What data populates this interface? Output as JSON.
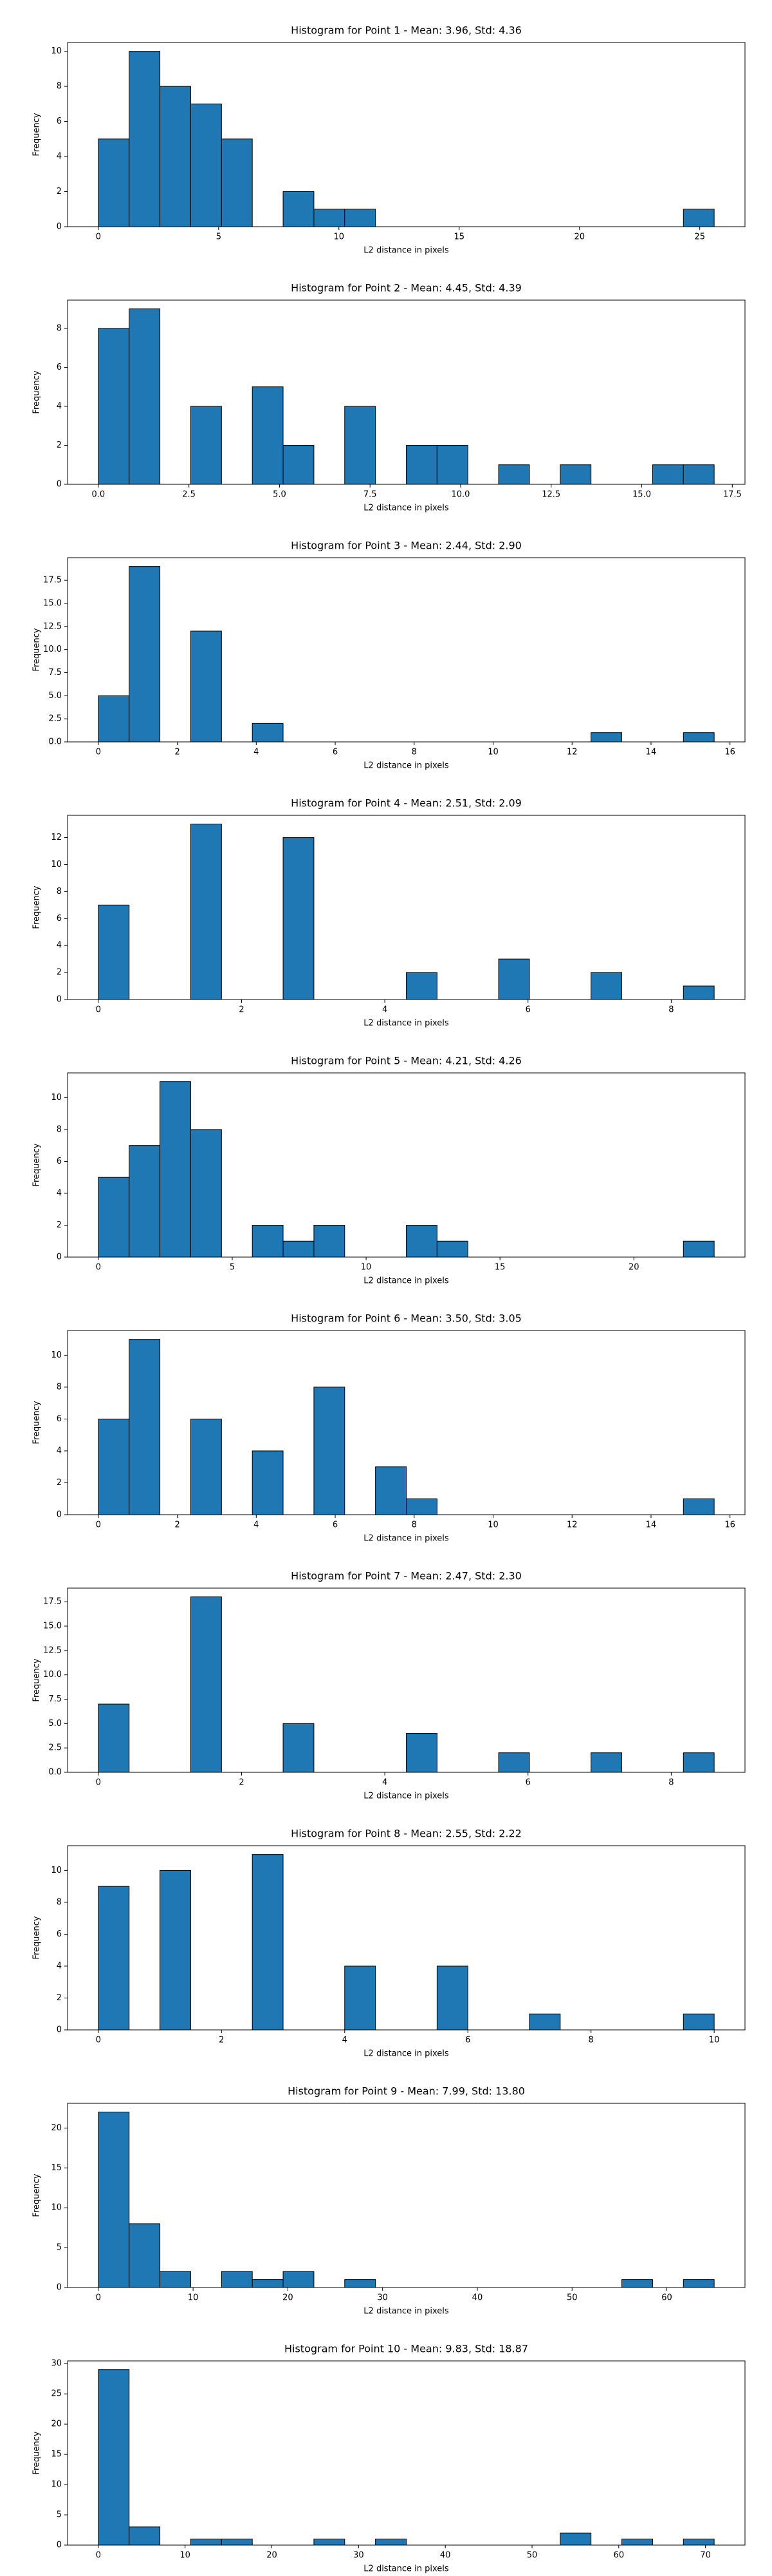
{
  "chart_data": [
    {
      "type": "histogram",
      "title": "Histogram for Point 1 - Mean: 3.96, Std: 4.36",
      "xlabel": "L2 distance in pixels",
      "ylabel": "Frequency",
      "color": "#1f77b4",
      "bins": [
        0,
        1.28,
        2.56,
        3.84,
        5.12,
        6.4,
        7.68,
        8.96,
        10.24,
        11.52,
        12.8,
        14.08,
        15.36,
        16.64,
        17.92,
        19.2,
        20.48,
        21.76,
        23.04,
        24.32,
        25.6
      ],
      "values": [
        5,
        10,
        8,
        7,
        5,
        0,
        2,
        1,
        1,
        0,
        0,
        0,
        0,
        0,
        0,
        0,
        0,
        0,
        0,
        1
      ],
      "xlim": [
        -1.28,
        26.88
      ],
      "ylim": [
        0,
        10.5
      ],
      "xticks": [
        0,
        5,
        10,
        15,
        20,
        25
      ],
      "yticks": [
        0,
        2,
        4,
        6,
        8,
        10
      ]
    },
    {
      "type": "histogram",
      "title": "Histogram for Point 2 - Mean: 4.45, Std: 4.39",
      "xlabel": "L2 distance in pixels",
      "ylabel": "Frequency",
      "color": "#1f77b4",
      "bins": [
        0,
        0.85,
        1.7,
        2.55,
        3.4,
        4.25,
        5.1,
        5.95,
        6.8,
        7.65,
        8.5,
        9.35,
        10.2,
        11.05,
        11.9,
        12.75,
        13.6,
        14.45,
        15.3,
        16.15,
        17
      ],
      "values": [
        8,
        9,
        0,
        4,
        0,
        5,
        2,
        0,
        4,
        0,
        2,
        2,
        0,
        1,
        0,
        1,
        0,
        0,
        1,
        1
      ],
      "xlim": [
        -0.85,
        17.85
      ],
      "ylim": [
        0,
        9.45
      ],
      "xticks": [
        {
          "value": 0,
          "label": "0.0"
        },
        2.5,
        {
          "value": 5,
          "label": "5.0"
        },
        7.5,
        {
          "value": 10,
          "label": "10.0"
        },
        12.5,
        {
          "value": 15,
          "label": "15.0"
        },
        17.5
      ],
      "yticks": [
        0,
        2,
        4,
        6,
        8
      ]
    },
    {
      "type": "histogram",
      "title": "Histogram for Point 3 - Mean: 2.44, Std: 2.90",
      "xlabel": "L2 distance in pixels",
      "ylabel": "Frequency",
      "color": "#1f77b4",
      "bins": [
        0,
        0.78,
        1.56,
        2.34,
        3.12,
        3.9,
        4.68,
        5.46,
        6.24,
        7.02,
        7.8,
        8.58,
        9.36,
        10.14,
        10.92,
        11.7,
        12.48,
        13.26,
        14.04,
        14.82,
        15.6
      ],
      "values": [
        5,
        19,
        0,
        12,
        0,
        2,
        0,
        0,
        0,
        0,
        0,
        0,
        0,
        0,
        0,
        0,
        1,
        0,
        0,
        1
      ],
      "xlim": [
        -0.78,
        16.38
      ],
      "ylim": [
        0,
        19.95
      ],
      "xticks": [
        0,
        2,
        4,
        6,
        8,
        10,
        12,
        14,
        16
      ],
      "yticks": [
        {
          "value": 0,
          "label": "0.0"
        },
        2.5,
        {
          "value": 5,
          "label": "5.0"
        },
        7.5,
        {
          "value": 10,
          "label": "10.0"
        },
        12.5,
        {
          "value": 15,
          "label": "15.0"
        },
        17.5
      ]
    },
    {
      "type": "histogram",
      "title": "Histogram for Point 4 - Mean: 2.51, Std: 2.09",
      "xlabel": "L2 distance in pixels",
      "ylabel": "Frequency",
      "color": "#1f77b4",
      "bins": [
        0,
        0.43,
        0.86,
        1.29,
        1.72,
        2.15,
        2.58,
        3.01,
        3.44,
        3.87,
        4.3,
        4.73,
        5.16,
        5.59,
        6.02,
        6.45,
        6.88,
        7.31,
        7.74,
        8.17,
        8.6
      ],
      "values": [
        7,
        0,
        0,
        13,
        0,
        0,
        12,
        0,
        0,
        0,
        2,
        0,
        0,
        3,
        0,
        0,
        2,
        0,
        0,
        1
      ],
      "xlim": [
        -0.43,
        9.03
      ],
      "ylim": [
        0,
        13.65
      ],
      "xticks": [
        0,
        2,
        4,
        6,
        8
      ],
      "yticks": [
        0,
        2,
        4,
        6,
        8,
        10,
        12
      ]
    },
    {
      "type": "histogram",
      "title": "Histogram for Point 5 - Mean: 4.21, Std: 4.26",
      "xlabel": "L2 distance in pixels",
      "ylabel": "Frequency",
      "color": "#1f77b4",
      "bins": [
        0,
        1.15,
        2.3,
        3.45,
        4.6,
        5.75,
        6.9,
        8.05,
        9.2,
        10.35,
        11.5,
        12.65,
        13.8,
        14.95,
        16.1,
        17.25,
        18.4,
        19.55,
        20.7,
        21.85,
        23
      ],
      "values": [
        5,
        7,
        11,
        8,
        0,
        2,
        1,
        2,
        0,
        0,
        2,
        1,
        0,
        0,
        0,
        0,
        0,
        0,
        0,
        1
      ],
      "xlim": [
        -1.15,
        24.15
      ],
      "ylim": [
        0,
        11.55
      ],
      "xticks": [
        0,
        5,
        10,
        15,
        20
      ],
      "yticks": [
        0,
        2,
        4,
        6,
        8,
        10
      ]
    },
    {
      "type": "histogram",
      "title": "Histogram for Point 6 - Mean: 3.50, Std: 3.05",
      "xlabel": "L2 distance in pixels",
      "ylabel": "Frequency",
      "color": "#1f77b4",
      "bins": [
        0,
        0.78,
        1.56,
        2.34,
        3.12,
        3.9,
        4.68,
        5.46,
        6.24,
        7.02,
        7.8,
        8.58,
        9.36,
        10.14,
        10.92,
        11.7,
        12.48,
        13.26,
        14.04,
        14.82,
        15.6
      ],
      "values": [
        6,
        11,
        0,
        6,
        0,
        4,
        0,
        8,
        0,
        3,
        1,
        0,
        0,
        0,
        0,
        0,
        0,
        0,
        0,
        1
      ],
      "xlim": [
        -0.78,
        16.38
      ],
      "ylim": [
        0,
        11.55
      ],
      "xticks": [
        0,
        2,
        4,
        6,
        8,
        10,
        12,
        14,
        16
      ],
      "yticks": [
        0,
        2,
        4,
        6,
        8,
        10
      ]
    },
    {
      "type": "histogram",
      "title": "Histogram for Point 7 - Mean: 2.47, Std: 2.30",
      "xlabel": "L2 distance in pixels",
      "ylabel": "Frequency",
      "color": "#1f77b4",
      "bins": [
        0,
        0.43,
        0.86,
        1.29,
        1.72,
        2.15,
        2.58,
        3.01,
        3.44,
        3.87,
        4.3,
        4.73,
        5.16,
        5.59,
        6.02,
        6.45,
        6.88,
        7.31,
        7.74,
        8.17,
        8.6
      ],
      "values": [
        7,
        0,
        0,
        18,
        0,
        0,
        5,
        0,
        0,
        0,
        4,
        0,
        0,
        2,
        0,
        0,
        2,
        0,
        0,
        2
      ],
      "xlim": [
        -0.43,
        9.03
      ],
      "ylim": [
        0,
        18.9
      ],
      "xticks": [
        0,
        2,
        4,
        6,
        8
      ],
      "yticks": [
        {
          "value": 0,
          "label": "0.0"
        },
        2.5,
        {
          "value": 5,
          "label": "5.0"
        },
        7.5,
        {
          "value": 10,
          "label": "10.0"
        },
        12.5,
        {
          "value": 15,
          "label": "15.0"
        },
        17.5
      ]
    },
    {
      "type": "histogram",
      "title": "Histogram for Point 8 - Mean: 2.55, Std: 2.22",
      "xlabel": "L2 distance in pixels",
      "ylabel": "Frequency",
      "color": "#1f77b4",
      "bins": [
        0,
        0.5,
        1,
        1.5,
        2,
        2.5,
        3,
        3.5,
        4,
        4.5,
        5,
        5.5,
        6,
        6.5,
        7,
        7.5,
        8,
        8.5,
        9,
        9.5,
        10
      ],
      "values": [
        9,
        0,
        10,
        0,
        0,
        11,
        0,
        0,
        4,
        0,
        0,
        4,
        0,
        0,
        1,
        0,
        0,
        0,
        0,
        1
      ],
      "xlim": [
        -0.5,
        10.5
      ],
      "ylim": [
        0,
        11.55
      ],
      "xticks": [
        0,
        2,
        4,
        6,
        8,
        10
      ],
      "yticks": [
        0,
        2,
        4,
        6,
        8,
        10
      ]
    },
    {
      "type": "histogram",
      "title": "Histogram for Point 9 - Mean: 7.99, Std: 13.80",
      "xlabel": "L2 distance in pixels",
      "ylabel": "Frequency",
      "color": "#1f77b4",
      "bins": [
        0,
        3.25,
        6.5,
        9.75,
        13,
        16.25,
        19.5,
        22.75,
        26,
        29.25,
        32.5,
        35.75,
        39,
        42.25,
        45.5,
        48.75,
        52,
        55.25,
        58.5,
        61.75,
        65
      ],
      "values": [
        22,
        8,
        2,
        0,
        2,
        1,
        2,
        0,
        1,
        0,
        0,
        0,
        0,
        0,
        0,
        0,
        0,
        1,
        0,
        1
      ],
      "xlim": [
        -3.25,
        68.25
      ],
      "ylim": [
        0,
        23.1
      ],
      "xticks": [
        0,
        10,
        20,
        30,
        40,
        50,
        60
      ],
      "yticks": [
        0,
        5,
        10,
        15,
        20
      ]
    },
    {
      "type": "histogram",
      "title": "Histogram for Point 10 - Mean: 9.83, Std: 18.87",
      "xlabel": "L2 distance in pixels",
      "ylabel": "Frequency",
      "color": "#1f77b4",
      "bins": [
        0,
        3.55,
        7.1,
        10.65,
        14.2,
        17.75,
        21.3,
        24.85,
        28.4,
        31.95,
        35.5,
        39.05,
        42.6,
        46.15,
        49.7,
        53.25,
        56.8,
        60.35,
        63.9,
        67.45,
        71
      ],
      "values": [
        29,
        3,
        0,
        1,
        1,
        0,
        0,
        1,
        0,
        1,
        0,
        0,
        0,
        0,
        0,
        2,
        0,
        1,
        0,
        1
      ],
      "xlim": [
        -3.55,
        74.55
      ],
      "ylim": [
        0,
        30.45
      ],
      "xticks": [
        0,
        10,
        20,
        30,
        40,
        50,
        60,
        70
      ],
      "yticks": [
        0,
        5,
        10,
        15,
        20,
        25,
        30
      ]
    }
  ]
}
